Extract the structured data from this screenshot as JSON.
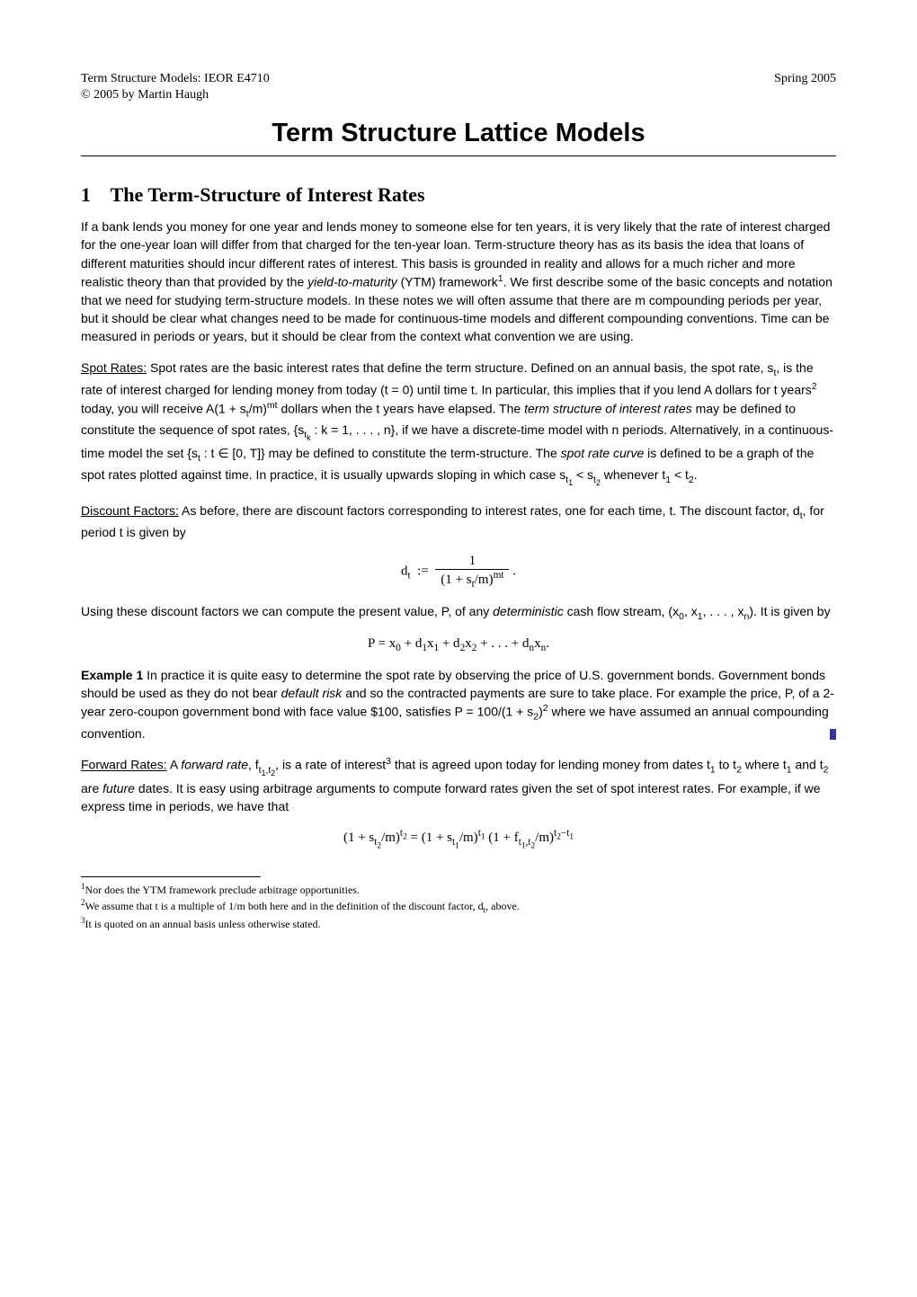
{
  "header": {
    "course": "Term Structure Models: IEOR E4710",
    "term": "Spring 2005",
    "copyright": "©  2005 by Martin Haugh"
  },
  "title": "Term Structure Lattice Models",
  "section1": {
    "number": "1",
    "heading": "The Term-Structure of Interest Rates",
    "intro": "If a bank lends you money for one year and lends money to someone else for ten years, it is very likely that the rate of interest charged for the one-year loan will differ from that charged for the ten-year loan. Term-structure theory has as its basis the idea that loans of different maturities should incur different rates of interest. This basis is grounded in reality and allows for a much richer and more realistic theory than that provided by the ",
    "intro_ytm": "yield-to-maturity",
    "intro2": " (YTM) framework",
    "intro_fn1": "1",
    "intro3": ". We first describe some of the basic concepts and notation that we need for studying term-structure models. In these notes we will often assume that there are m compounding periods per year, but it should be clear what changes need to be made for continuous-time models and different compounding conventions. Time can be measured in periods or years, but it should be clear from the context what convention we are using.",
    "spot_label": "Spot Rates:",
    "spot1": " Spot rates are the basic interest rates that define the term structure. Defined on an annual basis, the spot rate, s",
    "spot1b": ", is the rate of interest charged for lending money from today (t = 0) until time t. In particular, this implies that if you lend A dollars for t years",
    "spot_fn2": "2",
    "spot1c": " today, you will receive A(1 + s",
    "spot1d": "/m)",
    "spot1e": " dollars when the t years have elapsed. The ",
    "spot_term": "term structure of interest rates",
    "spot2": " may be defined to constitute the sequence of spot rates, {s",
    "spot2b": " : k = 1, . . . , n}, if we have a discrete-time model with n periods. Alternatively, in a continuous-time model the set {s",
    "spot2c": " : t ∈ [0, T]} may be defined to constitute the term-structure. The ",
    "spot_curve": "spot rate curve",
    "spot3": " is defined to be a graph of the spot rates plotted against time. In practice, it is usually upwards sloping in which case s",
    "spot3b": " whenever t",
    "spot3c": " < t",
    "spot3d": ".",
    "disc_label": "Discount Factors:",
    "disc1": " As before, there are discount factors corresponding to interest rates, one for each time, t. The discount factor, d",
    "disc1b": ", for period t is given by",
    "eq1_lhs": "d",
    "eq1_rhs_num": "1",
    "eq1_rhs_den": "(1 + s",
    "eq1_rhs_den2": "/m)",
    "disc2": "Using these discount factors we can compute the present value, P, of any ",
    "disc_det": "deterministic",
    "disc2b": " cash flow stream, (x",
    "disc2c": ", x",
    "disc2d": ", . . . , x",
    "disc2e": "). It is given by",
    "eq2": "P = x",
    "eq2b": " + d",
    "eq2c": "x",
    "eq2d": " + d",
    "eq2e": "x",
    "eq2f": " + . . . + d",
    "eq2g": "x",
    "eq2h": ".",
    "ex_label": "Example 1",
    "ex1": " In practice it is quite easy to determine the spot rate by observing the price of U.S. government bonds. Government bonds should be used as they do not bear ",
    "ex_default": "default risk",
    "ex1b": " and so the contracted payments are sure to take place. For example the price, P, of a 2-year zero-coupon government bond with face value $100, satisfies P = 100/(1 + s",
    "ex1c": ")",
    "ex1d": " where we have assumed an annual compounding convention.",
    "fwd_label": "Forward Rates:",
    "fwd1": " A ",
    "fwd_rate": "forward rate",
    "fwd1b": ", f",
    "fwd1c": ", is a rate of interest",
    "fwd_fn3": "3",
    "fwd1d": " that is agreed upon today for lending money from dates t",
    "fwd1e": " to t",
    "fwd1f": " where t",
    "fwd1g": " and t",
    "fwd1h": " are ",
    "fwd_future": "future",
    "fwd1i": " dates. It is easy using arbitrage arguments to compute forward rates given the set of spot interest rates. For example, if we express time in periods, we have that",
    "eq3a": "(1 + s",
    "eq3b": "/m)",
    "eq3c": " = (1 + s",
    "eq3d": "/m)",
    "eq3e": " (1 + f",
    "eq3f": "/m)"
  },
  "footnotes": {
    "f1": "Nor does the YTM framework preclude arbitrage opportunities.",
    "f2a": "We assume that t is a multiple of 1/m both here and in the definition of the discount factor, d",
    "f2b": ", above.",
    "f3": "It is quoted on an annual basis unless otherwise stated."
  }
}
